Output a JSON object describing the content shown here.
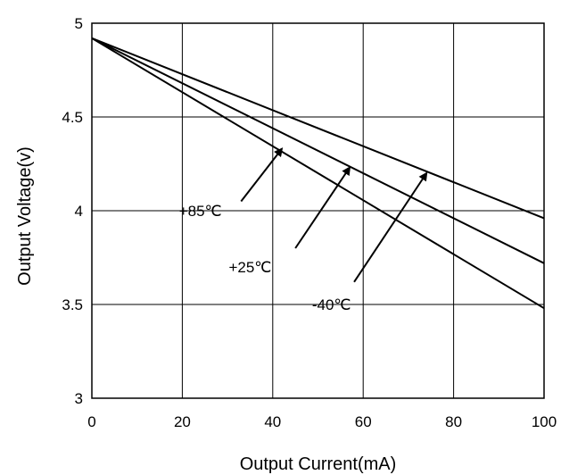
{
  "chart_data": {
    "type": "line",
    "xlabel": "Output Current(mA)",
    "ylabel": "Output Voltage(v)",
    "xlim": [
      0,
      100
    ],
    "ylim": [
      3,
      5
    ],
    "x_ticks": [
      0,
      20,
      40,
      60,
      80,
      100
    ],
    "y_ticks": [
      3,
      3.5,
      4,
      4.5,
      5
    ],
    "x_tick_labels": [
      "0",
      "20",
      "40",
      "60",
      "80",
      "100"
    ],
    "y_tick_labels": [
      "3",
      "3.5",
      "4",
      "4.5",
      "5"
    ],
    "grid": true,
    "series": [
      {
        "name": "+85℃",
        "x": [
          0,
          100
        ],
        "y": [
          4.92,
          3.48
        ],
        "label_at": [
          24,
          4.0
        ],
        "arrow_from": [
          33,
          4.05
        ],
        "arrow_to": [
          42,
          4.33
        ]
      },
      {
        "name": "+25℃",
        "x": [
          0,
          100
        ],
        "y": [
          4.92,
          3.72
        ],
        "label_at": [
          35,
          3.7
        ],
        "arrow_from": [
          45,
          3.8
        ],
        "arrow_to": [
          57,
          4.23
        ]
      },
      {
        "name": "-40℃",
        "x": [
          0,
          100
        ],
        "y": [
          4.92,
          3.96
        ],
        "label_at": [
          53,
          3.5
        ],
        "arrow_from": [
          58,
          3.62
        ],
        "arrow_to": [
          74,
          4.2
        ]
      }
    ]
  }
}
